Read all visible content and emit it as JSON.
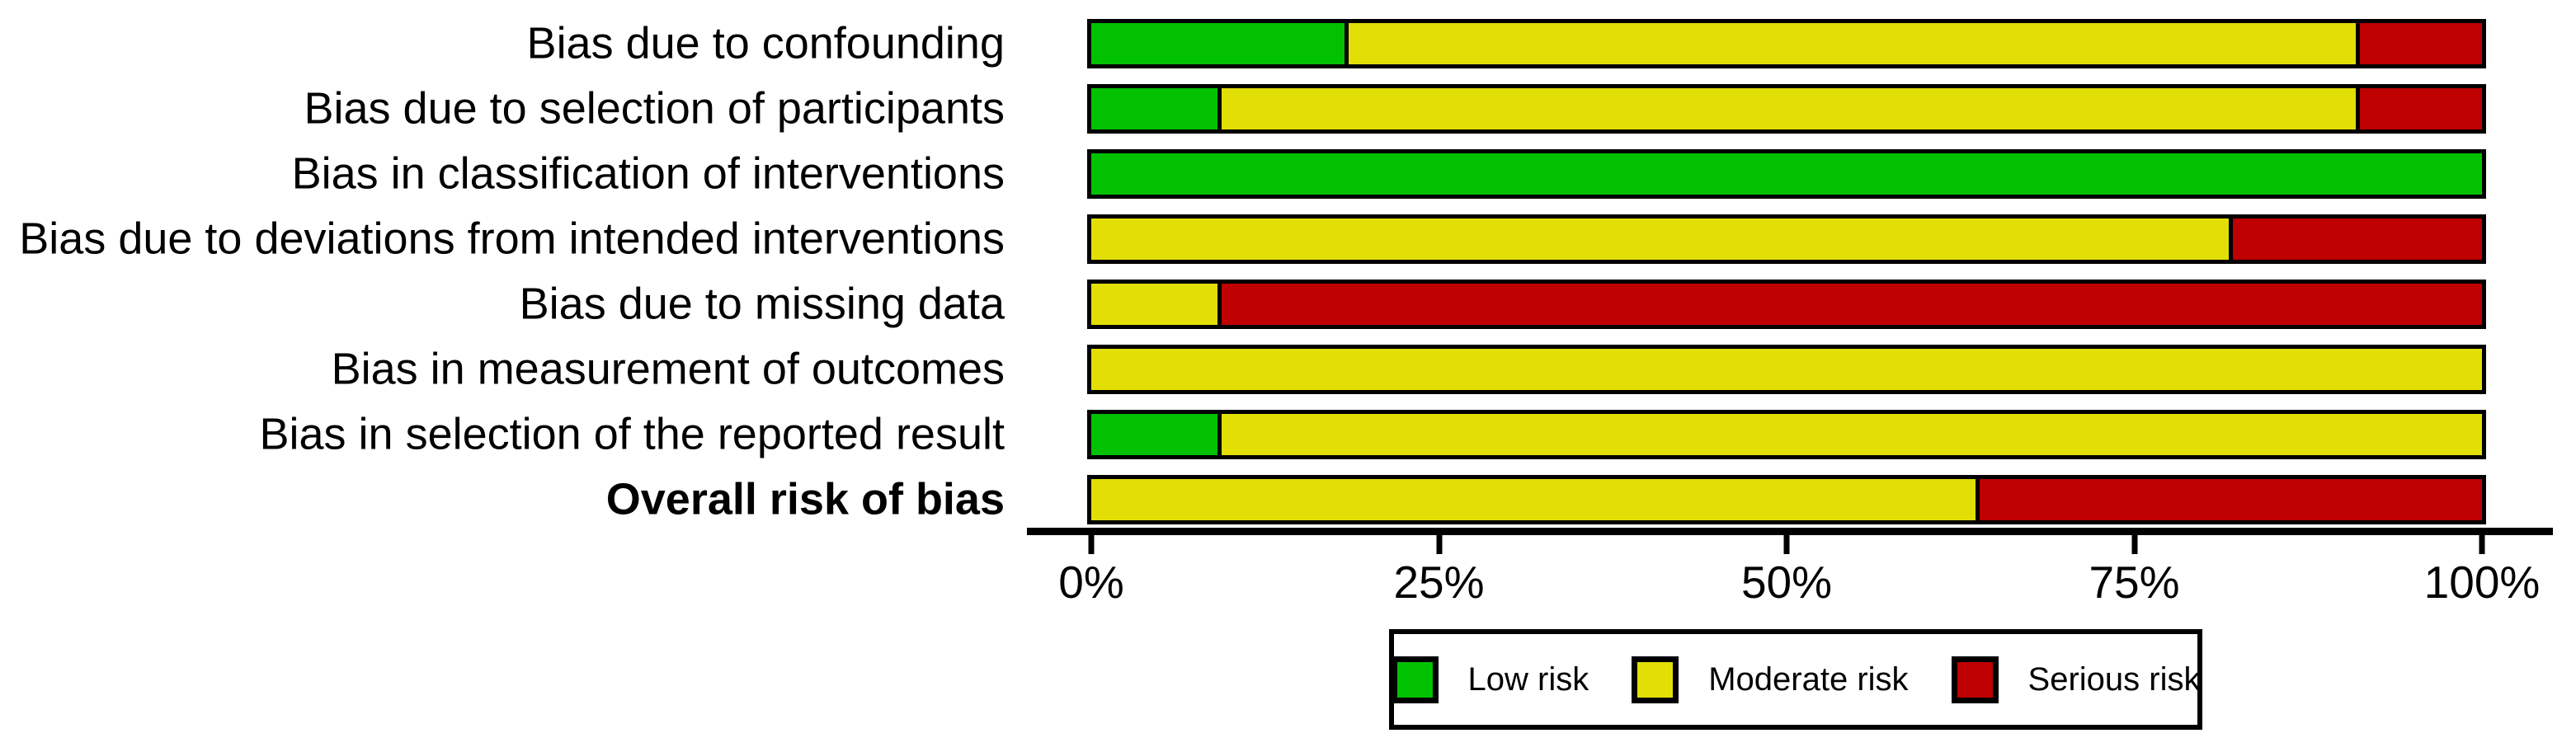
{
  "chart_data": {
    "type": "bar",
    "orientation": "horizontal",
    "stacked": true,
    "unit": "percent",
    "title": "",
    "xlabel": "",
    "ylabel": "",
    "xlim": [
      0,
      100
    ],
    "x_ticks": [
      "0%",
      "25%",
      "50%",
      "75%",
      "100%"
    ],
    "grid": false,
    "legend_position": "bottom",
    "categories": [
      {
        "label": "Bias due to confounding",
        "bold": false
      },
      {
        "label": "Bias due to selection of participants",
        "bold": false
      },
      {
        "label": "Bias in classification of interventions",
        "bold": false
      },
      {
        "label": "Bias due to deviations from intended interventions",
        "bold": false
      },
      {
        "label": "Bias due to missing data",
        "bold": false
      },
      {
        "label": "Bias in measurement of outcomes",
        "bold": false
      },
      {
        "label": "Bias in selection of the reported result",
        "bold": false
      },
      {
        "label": "Overall risk of bias",
        "bold": true
      }
    ],
    "series": [
      {
        "name": "Low risk",
        "color": "#02C100",
        "values": [
          18.2,
          9.1,
          100,
          0,
          0,
          0,
          9.1,
          0
        ]
      },
      {
        "name": "Moderate risk",
        "color": "#E2DF07",
        "values": [
          72.7,
          81.8,
          0,
          81.8,
          9.1,
          100,
          90.9,
          63.6
        ]
      },
      {
        "name": "Serious risk",
        "color": "#BF0000",
        "values": [
          9.1,
          9.1,
          0,
          18.2,
          90.9,
          0,
          0,
          36.4
        ]
      }
    ]
  },
  "legend": {
    "items": [
      {
        "label": "Low risk",
        "color": "#02C100"
      },
      {
        "label": "Moderate risk",
        "color": "#E2DF07"
      },
      {
        "label": "Serious risk",
        "color": "#BF0000"
      }
    ]
  },
  "colors": {
    "background": "#FFFFFF",
    "bar_border": "#000000",
    "axis": "#000000",
    "text": "#000000"
  }
}
